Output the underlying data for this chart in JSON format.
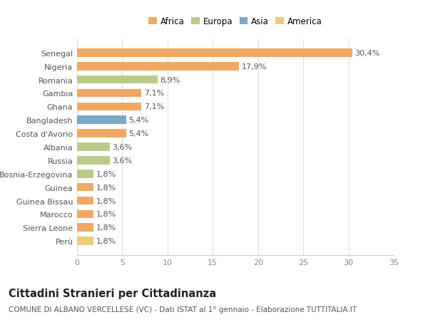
{
  "categories": [
    "Perù",
    "Sierra Leone",
    "Marocco",
    "Guinea Bissau",
    "Guinea",
    "Bosnia-Erzegovina",
    "Russia",
    "Albania",
    "Costa d'Avorio",
    "Bangladesh",
    "Ghana",
    "Gambia",
    "Romania",
    "Nigeria",
    "Senegal"
  ],
  "values": [
    1.8,
    1.8,
    1.8,
    1.8,
    1.8,
    1.8,
    3.6,
    3.6,
    5.4,
    5.4,
    7.1,
    7.1,
    8.9,
    17.9,
    30.4
  ],
  "labels": [
    "1,8%",
    "1,8%",
    "1,8%",
    "1,8%",
    "1,8%",
    "1,8%",
    "3,6%",
    "3,6%",
    "5,4%",
    "5,4%",
    "7,1%",
    "7,1%",
    "8,9%",
    "17,9%",
    "30,4%"
  ],
  "colors": [
    "#F2C97A",
    "#F0A865",
    "#F0A865",
    "#F0A865",
    "#F0A865",
    "#B8CC88",
    "#B8CC88",
    "#B8CC88",
    "#F0A865",
    "#7BA7C9",
    "#F0A865",
    "#F0A865",
    "#B8CC88",
    "#F0A865",
    "#F0A865"
  ],
  "legend_labels": [
    "Africa",
    "Europa",
    "Asia",
    "America"
  ],
  "legend_colors": [
    "#F0A865",
    "#B8CC88",
    "#7BA7C9",
    "#F2C97A"
  ],
  "title": "Cittadini Stranieri per Cittadinanza",
  "subtitle": "COMUNE DI ALBANO VERCELLESE (VC) - Dati ISTAT al 1° gennaio - Elaborazione TUTTITALIA.IT",
  "xlim": [
    0,
    35
  ],
  "xticks": [
    0,
    5,
    10,
    15,
    20,
    25,
    30,
    35
  ],
  "background_color": "#ffffff",
  "bar_height": 0.62,
  "label_fontsize": 8,
  "ytick_fontsize": 8,
  "xtick_fontsize": 8,
  "title_fontsize": 10.5,
  "subtitle_fontsize": 7.5
}
